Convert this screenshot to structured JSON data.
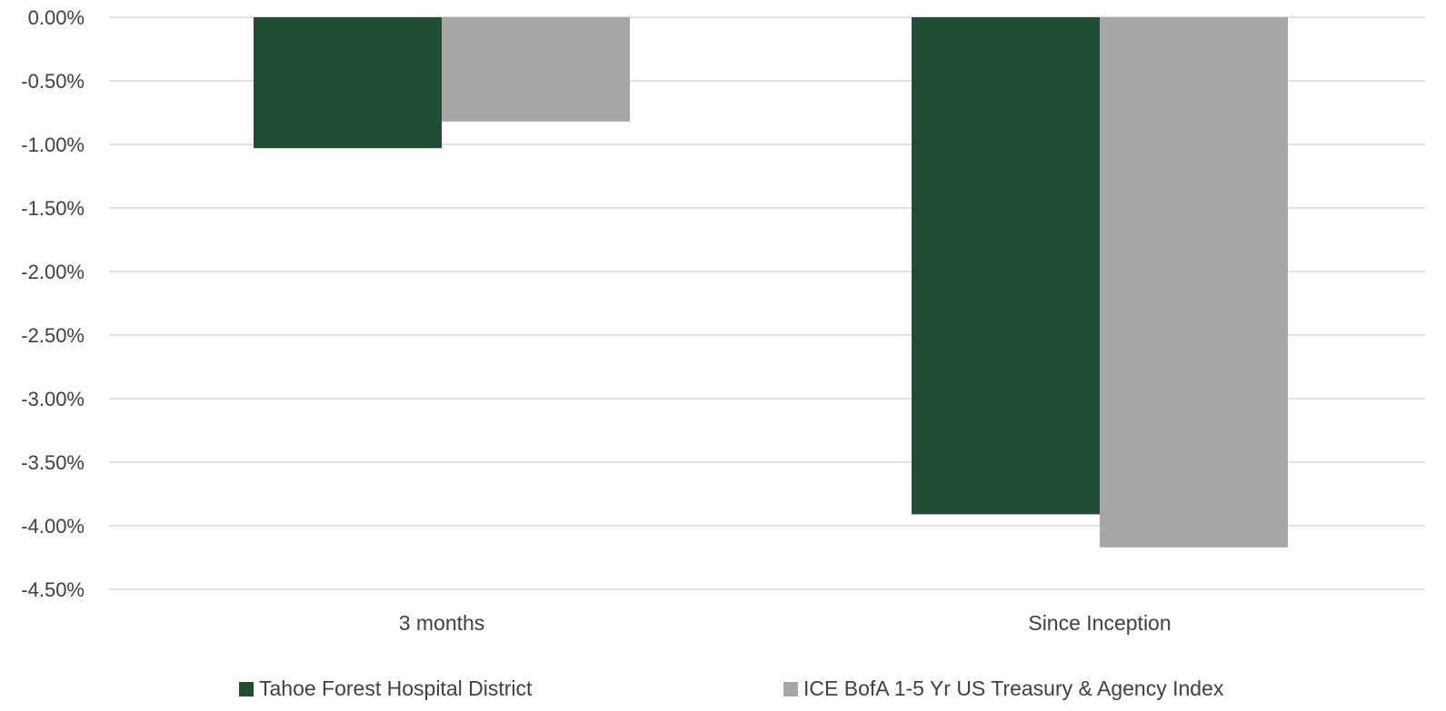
{
  "chart_data": {
    "type": "bar",
    "title": "",
    "xlabel": "",
    "ylabel": "",
    "categories": [
      "3 months",
      "Since Inception"
    ],
    "series": [
      {
        "name": "Tahoe Forest Hospital District",
        "color": "#214d37",
        "values": [
          -1.03,
          -3.91
        ]
      },
      {
        "name": "ICE BofA 1-5 Yr US Treasury & Agency Index",
        "color": "#a6a6a6",
        "values": [
          -0.82,
          -4.17
        ]
      }
    ],
    "ylim": [
      -4.5,
      0
    ],
    "ytick_values": [
      0,
      -0.5,
      -1,
      -1.5,
      -2,
      -2.5,
      -3,
      -3.5,
      -4,
      -4.5
    ],
    "ytick_labels": [
      "0.00%",
      "-0.50%",
      "-1.00%",
      "-1.50%",
      "-2.00%",
      "-2.50%",
      "-3.00%",
      "-3.50%",
      "-4.00%",
      "-4.50%"
    ],
    "grid": true,
    "gridline_color": "#d9d9d9",
    "legend_position": "bottom"
  }
}
